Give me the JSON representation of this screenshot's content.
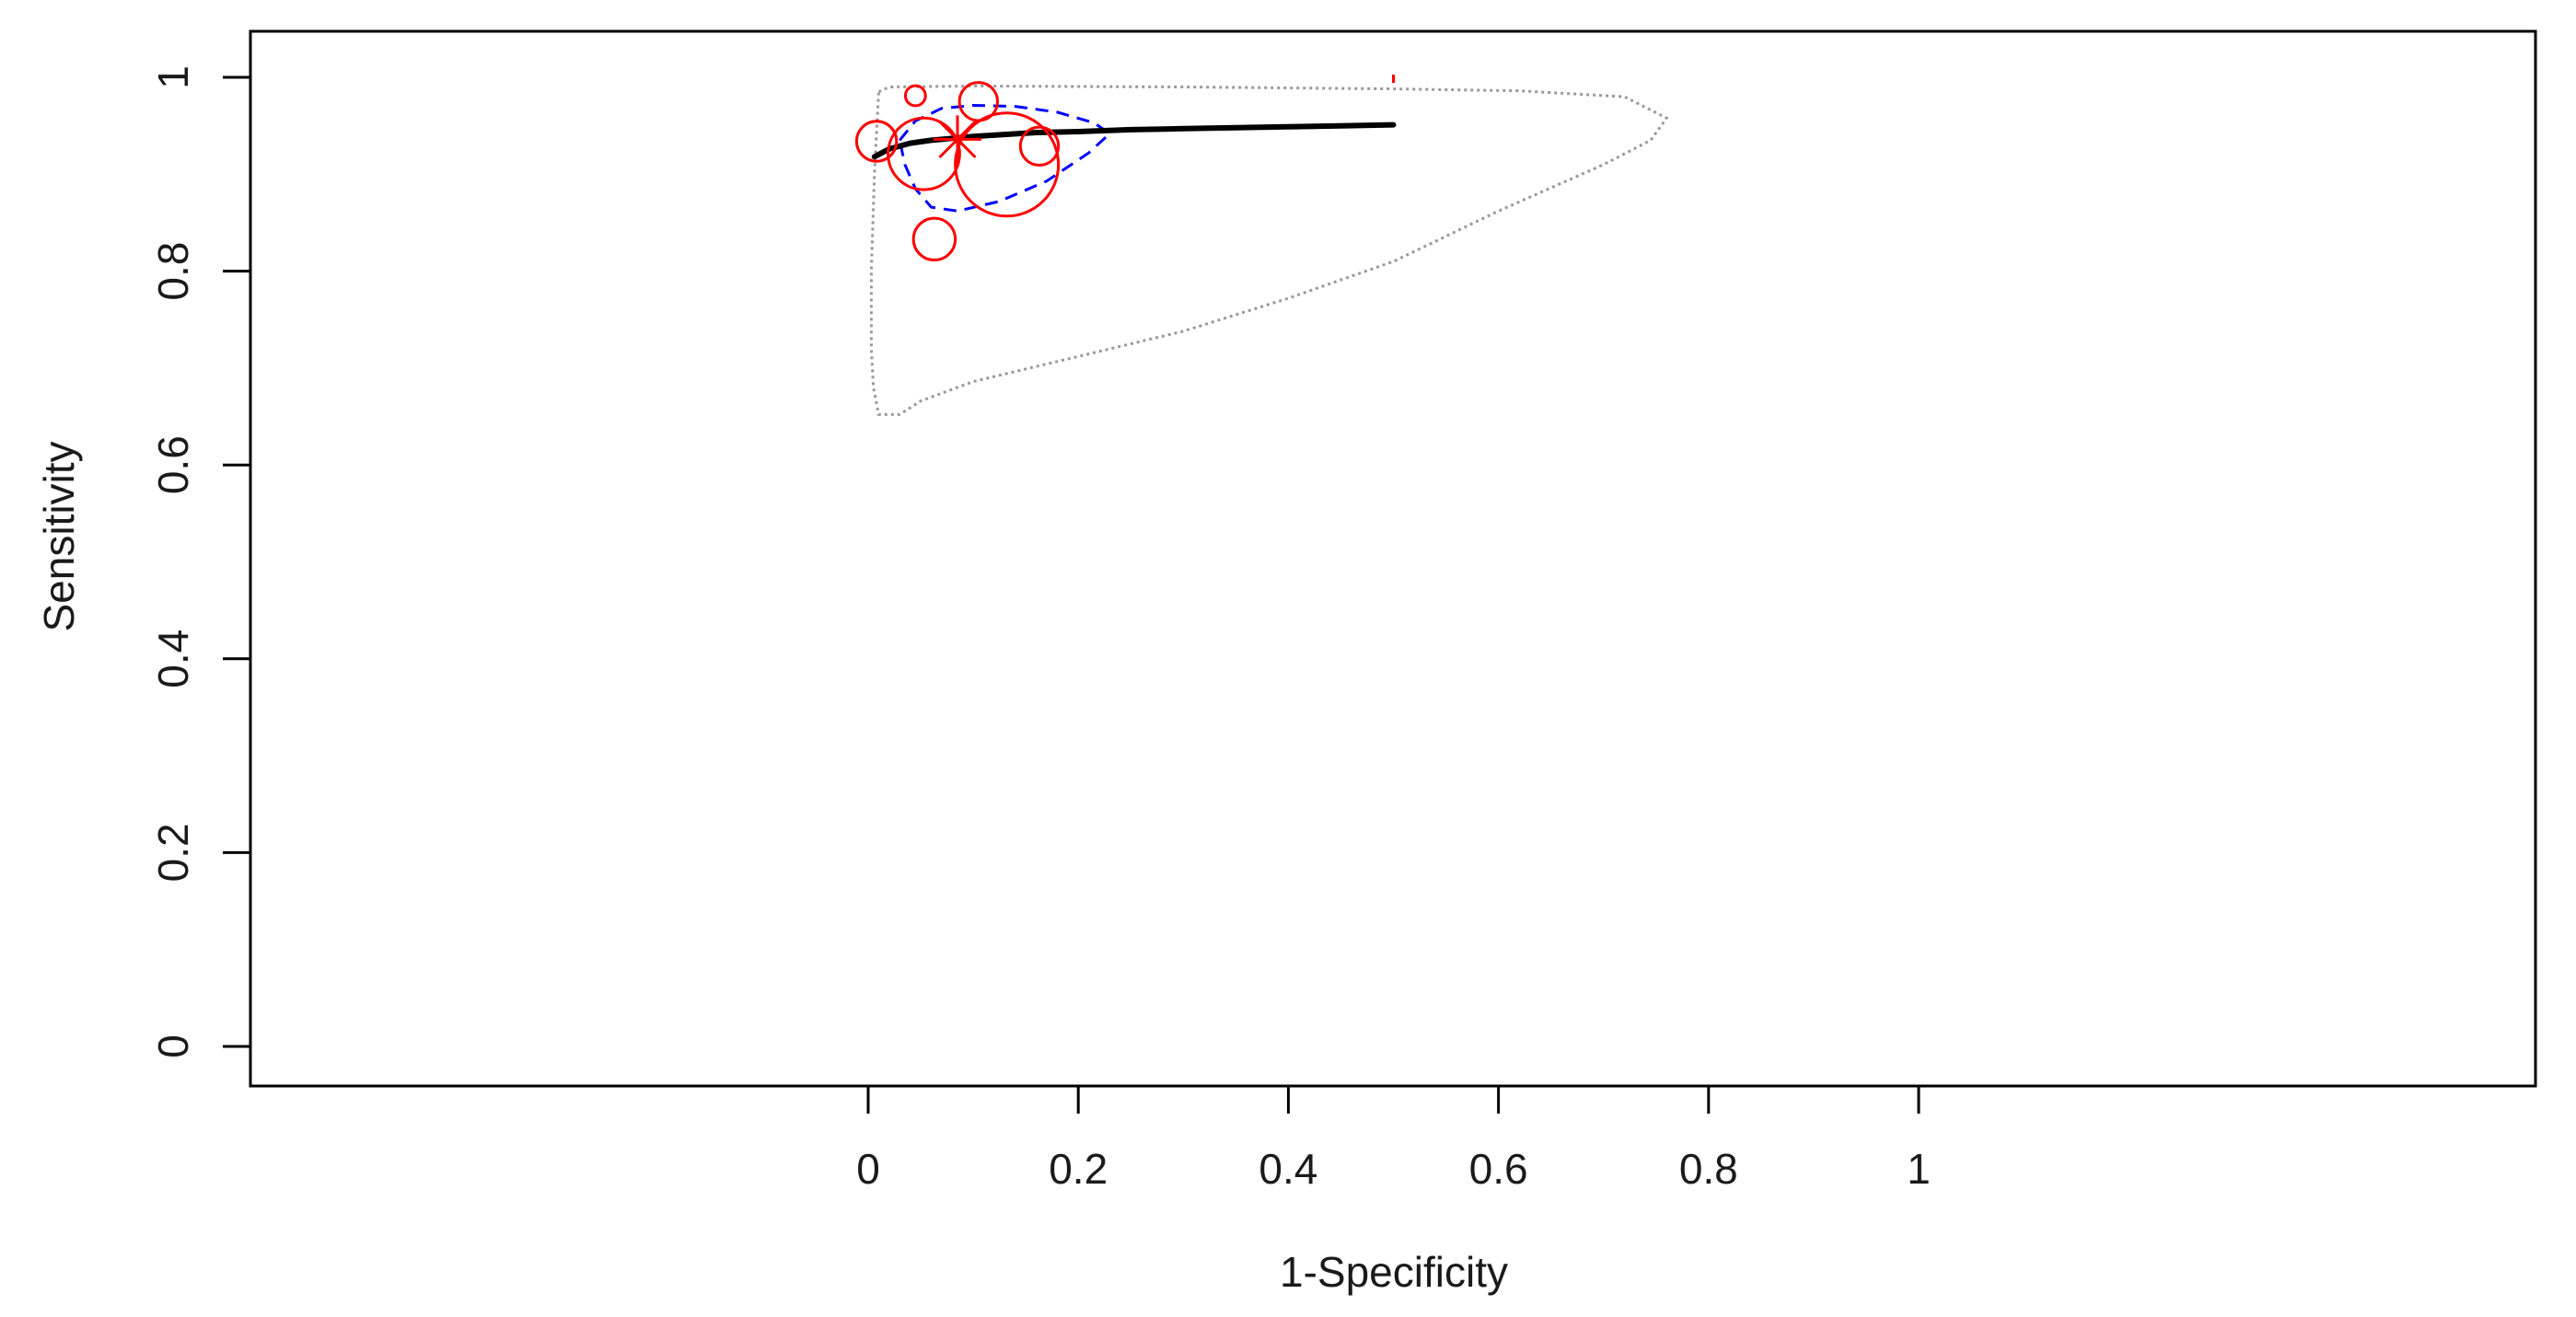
{
  "chart_data": {
    "type": "scatter",
    "title": "",
    "xlabel": "1-Specificity",
    "ylabel": "Sensitivity",
    "xlim": [
      0,
      1
    ],
    "ylim": [
      0,
      1
    ],
    "grid": false,
    "legend": null,
    "x_ticks": [
      {
        "value": 0,
        "label": "0"
      },
      {
        "value": 0.2,
        "label": "0.2"
      },
      {
        "value": 0.4,
        "label": "0.4"
      },
      {
        "value": 0.6,
        "label": "0.6"
      },
      {
        "value": 0.8,
        "label": "0.8"
      },
      {
        "value": 1,
        "label": "1"
      }
    ],
    "y_ticks": [
      {
        "value": 0,
        "label": "0"
      },
      {
        "value": 0.2,
        "label": "0.2"
      },
      {
        "value": 0.4,
        "label": "0.4"
      },
      {
        "value": 0.6,
        "label": "0.6"
      },
      {
        "value": 0.8,
        "label": "0.8"
      },
      {
        "value": 1,
        "label": "1"
      }
    ],
    "colors": {
      "studies": "#ff0000",
      "summary_point": "#ff0000",
      "sroc_curve": "#000000",
      "confidence_region": "#0000ff",
      "prediction_region": "#999999",
      "axes": "#000000"
    },
    "studies": [
      {
        "fpr": 0.008,
        "sensitivity": 0.934,
        "weight": 0.3
      },
      {
        "fpr": 0.045,
        "sensitivity": 0.981,
        "weight": 0.08
      },
      {
        "fpr": 0.053,
        "sensitivity": 0.921,
        "weight": 0.65
      },
      {
        "fpr": 0.063,
        "sensitivity": 0.833,
        "weight": 0.32
      },
      {
        "fpr": 0.105,
        "sensitivity": 0.975,
        "weight": 0.28
      },
      {
        "fpr": 0.132,
        "sensitivity": 0.91,
        "weight": 1.0
      },
      {
        "fpr": 0.163,
        "sensitivity": 0.929,
        "weight": 0.28
      }
    ],
    "summary_point": {
      "fpr": 0.085,
      "sensitivity": 0.936
    },
    "sroc_curve": {
      "fpr": [
        0.006,
        0.02,
        0.04,
        0.06,
        0.08,
        0.1,
        0.13,
        0.16,
        0.2,
        0.25,
        0.3,
        0.35,
        0.4,
        0.45,
        0.5
      ],
      "sensitivity": [
        0.918,
        0.926,
        0.932,
        0.935,
        0.937,
        0.939,
        0.941,
        0.943,
        0.944,
        0.946,
        0.947,
        0.948,
        0.949,
        0.95,
        0.951
      ]
    },
    "confidence_region": {
      "fpr": [
        0.03,
        0.045,
        0.07,
        0.1,
        0.14,
        0.18,
        0.215,
        0.23,
        0.21,
        0.17,
        0.125,
        0.085,
        0.06,
        0.045,
        0.035,
        0.03
      ],
      "sensitivity": [
        0.935,
        0.955,
        0.968,
        0.971,
        0.97,
        0.964,
        0.953,
        0.942,
        0.922,
        0.893,
        0.872,
        0.862,
        0.866,
        0.885,
        0.91,
        0.935
      ]
    },
    "prediction_region": {
      "fpr": [
        0.01,
        0.02,
        0.1,
        0.3,
        0.5,
        0.62,
        0.72,
        0.76,
        0.745,
        0.7,
        0.6,
        0.5,
        0.4,
        0.3,
        0.2,
        0.1,
        0.05,
        0.03,
        0.01,
        0.005,
        0.003,
        0.003,
        0.006,
        0.01
      ],
      "sensitivity": [
        0.985,
        0.99,
        0.991,
        0.99,
        0.988,
        0.986,
        0.98,
        0.958,
        0.935,
        0.91,
        0.862,
        0.81,
        0.772,
        0.738,
        0.712,
        0.686,
        0.666,
        0.652,
        0.652,
        0.68,
        0.72,
        0.8,
        0.9,
        0.985
      ]
    },
    "extra_mark": {
      "fpr": 0.5,
      "sensitivity": 0.998
    }
  }
}
